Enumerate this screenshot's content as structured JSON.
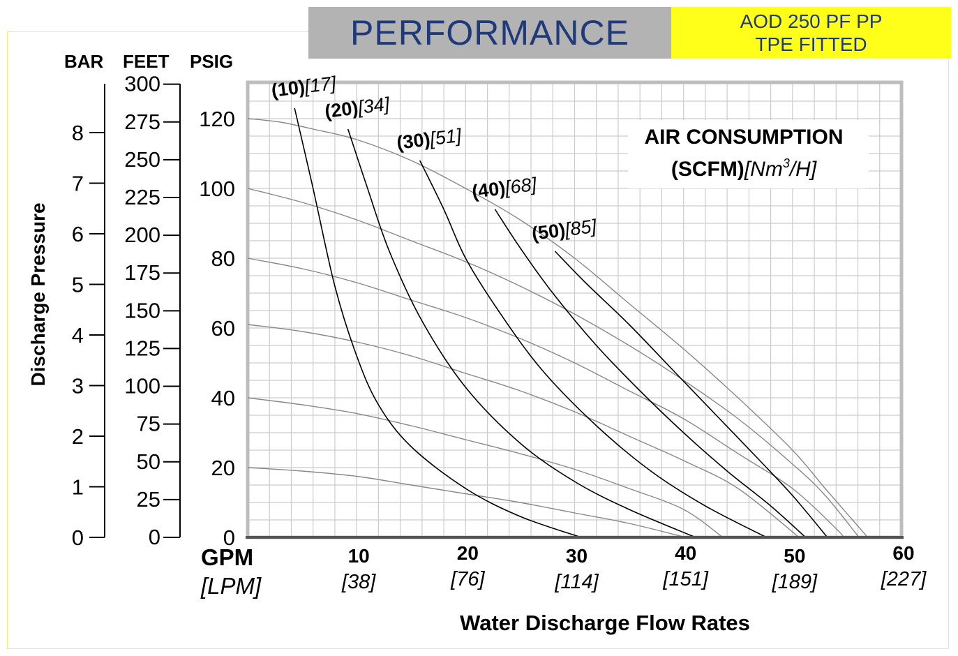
{
  "header": {
    "title": "PERFORMANCE",
    "model_line1": "AOD 250 PF PP",
    "model_line2": "TPE FITTED"
  },
  "colors": {
    "title_bg": "#b3b3b3",
    "title_text": "#1f3a7a",
    "model_bg": "#ffff1a",
    "page_border": "#f4f06a",
    "grid": "#cccccc",
    "frame": "#bdbdbd",
    "flow_curve": "#000000",
    "air_curve": "#888888"
  },
  "chart_data": {
    "type": "line",
    "xlabel": "Water Discharge Flow Rates",
    "x_unit_label": "GPM",
    "x_unit_alt_label": "[LPM]",
    "xlim": [
      0,
      60
    ],
    "x_ticks": [
      {
        "value": 10,
        "label": "10",
        "alt": "[38]"
      },
      {
        "value": 20,
        "label": "20",
        "alt": "[76]"
      },
      {
        "value": 30,
        "label": "30",
        "alt": "[114]"
      },
      {
        "value": 40,
        "label": "40",
        "alt": "[151]"
      },
      {
        "value": 50,
        "label": "50",
        "alt": "[189]"
      },
      {
        "value": 60,
        "label": "60",
        "alt": "[227]"
      }
    ],
    "ylabel": "Discharge Pressure",
    "ylim": [
      0,
      130
    ],
    "y_axes": {
      "psig": {
        "header": "PSIG",
        "ticks": [
          "0",
          "20",
          "40",
          "60",
          "80",
          "100",
          "120"
        ]
      },
      "feet": {
        "header": "FEET",
        "ticks": [
          "0",
          "25",
          "50",
          "75",
          "100",
          "125",
          "150",
          "175",
          "200",
          "225",
          "250",
          "275",
          "300"
        ]
      },
      "bar": {
        "header": "BAR",
        "ticks": [
          "0",
          "1",
          "2",
          "3",
          "4",
          "5",
          "6",
          "7",
          "8"
        ]
      }
    },
    "grid": true,
    "annotation": {
      "line1": "AIR CONSUMPTION",
      "line2_bold": "(SCFM)",
      "line2_italic_a": "[Nm",
      "line2_sup": "3",
      "line2_italic_b": "/H]"
    },
    "air_consumption_curves": [
      {
        "scfm": "(10)",
        "nm3h": "[17]",
        "points": [
          [
            4.3,
            123
          ],
          [
            6,
            100
          ],
          [
            8,
            72
          ],
          [
            10,
            52
          ],
          [
            12,
            38
          ],
          [
            15,
            26
          ],
          [
            20,
            14
          ],
          [
            25,
            6
          ],
          [
            30.6,
            0
          ]
        ]
      },
      {
        "scfm": "(20)",
        "nm3h": "[34]",
        "points": [
          [
            9.2,
            117
          ],
          [
            11,
            100
          ],
          [
            13,
            82
          ],
          [
            16,
            62
          ],
          [
            20,
            43
          ],
          [
            25,
            27
          ],
          [
            30,
            16
          ],
          [
            35,
            8
          ],
          [
            41.1,
            0
          ]
        ]
      },
      {
        "scfm": "(30)",
        "nm3h": "[51]",
        "points": [
          [
            15.8,
            108
          ],
          [
            18,
            94
          ],
          [
            20,
            80
          ],
          [
            23,
            65
          ],
          [
            27,
            48
          ],
          [
            32,
            32
          ],
          [
            37,
            19
          ],
          [
            42,
            9
          ],
          [
            47.6,
            0
          ]
        ]
      },
      {
        "scfm": "(40)",
        "nm3h": "[68]",
        "points": [
          [
            22.7,
            94
          ],
          [
            25,
            83
          ],
          [
            28,
            70
          ],
          [
            32,
            55
          ],
          [
            36,
            42
          ],
          [
            40,
            30
          ],
          [
            44,
            19
          ],
          [
            48,
            9
          ],
          [
            51.2,
            0
          ]
        ]
      },
      {
        "scfm": "(50)",
        "nm3h": "[85]",
        "points": [
          [
            28.2,
            82
          ],
          [
            31,
            73
          ],
          [
            35,
            61
          ],
          [
            39,
            48
          ],
          [
            43,
            35
          ],
          [
            47,
            22
          ],
          [
            50,
            12
          ],
          [
            53.2,
            0
          ]
        ]
      }
    ],
    "system_curves": [
      {
        "points": [
          [
            0,
            20
          ],
          [
            5,
            19
          ],
          [
            10,
            17.5
          ],
          [
            15,
            15
          ],
          [
            20,
            12.5
          ],
          [
            25,
            10
          ],
          [
            30,
            7
          ],
          [
            35,
            4
          ],
          [
            40.2,
            0
          ]
        ]
      },
      {
        "points": [
          [
            0,
            40
          ],
          [
            5,
            38
          ],
          [
            10,
            35.5
          ],
          [
            15,
            32
          ],
          [
            20,
            28
          ],
          [
            25,
            24
          ],
          [
            30,
            19.5
          ],
          [
            35,
            14
          ],
          [
            40,
            8
          ],
          [
            43.6,
            0
          ]
        ]
      },
      {
        "points": [
          [
            0,
            61
          ],
          [
            5,
            59
          ],
          [
            10,
            56
          ],
          [
            15,
            52
          ],
          [
            20,
            47
          ],
          [
            25,
            42
          ],
          [
            30,
            36
          ],
          [
            35,
            29
          ],
          [
            40,
            22
          ],
          [
            45,
            14
          ],
          [
            50.6,
            0
          ]
        ]
      },
      {
        "points": [
          [
            0,
            80
          ],
          [
            5,
            77
          ],
          [
            10,
            73
          ],
          [
            15,
            68
          ],
          [
            20,
            63
          ],
          [
            25,
            57
          ],
          [
            30,
            50
          ],
          [
            35,
            42
          ],
          [
            40,
            34
          ],
          [
            45,
            24
          ],
          [
            50,
            14
          ],
          [
            54,
            2.5
          ],
          [
            54.7,
            0
          ]
        ]
      },
      {
        "points": [
          [
            0,
            100
          ],
          [
            5,
            96
          ],
          [
            10,
            91
          ],
          [
            15,
            85
          ],
          [
            20,
            79
          ],
          [
            25,
            72
          ],
          [
            30,
            64
          ],
          [
            35,
            55
          ],
          [
            40,
            45
          ],
          [
            45,
            34
          ],
          [
            50,
            21
          ],
          [
            53,
            12
          ],
          [
            56.1,
            0
          ]
        ]
      },
      {
        "points": [
          [
            0,
            120
          ],
          [
            3,
            119
          ],
          [
            6,
            117
          ],
          [
            10,
            114
          ],
          [
            15,
            108
          ],
          [
            20,
            100
          ],
          [
            25,
            91
          ],
          [
            30,
            80
          ],
          [
            35,
            67
          ],
          [
            40,
            54
          ],
          [
            45,
            40
          ],
          [
            50,
            25
          ],
          [
            53,
            14
          ],
          [
            56.9,
            0
          ]
        ]
      }
    ]
  }
}
